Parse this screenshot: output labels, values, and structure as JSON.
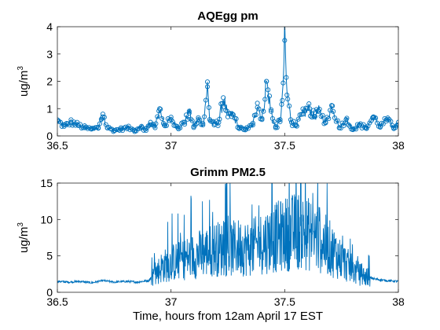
{
  "chart_data": [
    {
      "type": "line",
      "title": "AQEgg pm",
      "ylabel": "ug/m",
      "ylabel_sup": "3",
      "xlabel": "",
      "xlim": [
        36.5,
        38
      ],
      "ylim": [
        0,
        4
      ],
      "xticks": [
        36.5,
        37,
        37.5,
        38
      ],
      "xtick_labels": [
        "36.5",
        "37",
        "37.5",
        "38"
      ],
      "yticks": [
        0,
        1,
        2,
        3,
        4
      ],
      "ytick_labels": [
        "0",
        "1",
        "2",
        "3",
        "4"
      ],
      "grid": false,
      "marker": "circle",
      "color": "#0072BD",
      "series": [
        {
          "x": [
            36.5,
            36.53,
            36.56,
            36.59,
            36.62,
            36.65,
            36.68,
            36.7,
            36.72,
            36.75,
            36.78,
            36.81,
            36.84,
            36.87,
            36.89,
            36.91,
            36.93,
            36.95,
            36.97,
            37.0,
            37.03,
            37.06,
            37.08,
            37.1,
            37.12,
            37.14,
            37.16,
            37.17,
            37.19,
            37.21,
            37.23,
            37.25,
            37.27,
            37.3,
            37.33,
            37.36,
            37.38,
            37.4,
            37.42,
            37.44,
            37.46,
            37.48,
            37.49,
            37.5,
            37.51,
            37.53,
            37.55,
            37.58,
            37.61,
            37.63,
            37.65,
            37.68,
            37.71,
            37.74,
            37.77,
            37.8,
            37.83,
            37.86,
            37.89,
            37.92,
            37.95,
            37.98,
            38.0
          ],
          "y": [
            0.55,
            0.35,
            0.5,
            0.4,
            0.3,
            0.25,
            0.3,
            0.8,
            0.3,
            0.2,
            0.25,
            0.3,
            0.2,
            0.35,
            0.2,
            0.5,
            0.3,
            1.0,
            0.4,
            0.6,
            0.3,
            0.5,
            0.9,
            0.35,
            0.6,
            0.4,
            1.8,
            0.6,
            0.4,
            0.5,
            1.4,
            0.7,
            0.8,
            0.3,
            0.25,
            0.4,
            1.2,
            0.6,
            2.0,
            0.9,
            0.3,
            0.6,
            1.3,
            3.5,
            1.5,
            0.5,
            0.4,
            0.8,
            1.0,
            0.7,
            0.9,
            0.5,
            1.1,
            0.3,
            0.6,
            0.25,
            0.4,
            0.3,
            0.7,
            0.35,
            0.6,
            0.3,
            0.5
          ]
        }
      ]
    },
    {
      "type": "line",
      "title": "Grimm PM2.5",
      "ylabel": "ug/m",
      "ylabel_sup": "3",
      "xlabel": "Time, hours from 12am April 17 EST",
      "xlim": [
        36.5,
        38
      ],
      "ylim": [
        0,
        15
      ],
      "xticks": [
        36.5,
        37,
        37.5,
        38
      ],
      "xtick_labels": [
        "36.5",
        "37",
        "37.5",
        "38"
      ],
      "yticks": [
        0,
        5,
        10,
        15
      ],
      "ytick_labels": [
        "0",
        "5",
        "10",
        "15"
      ],
      "grid": false,
      "marker": "none",
      "color": "#0072BD",
      "series": [
        {
          "x": [
            36.5,
            36.55,
            36.6,
            36.65,
            36.7,
            36.75,
            36.8,
            36.85,
            36.9,
            36.93,
            36.96,
            37.0,
            37.05,
            37.1,
            37.15,
            37.2,
            37.25,
            37.3,
            37.35,
            37.4,
            37.43,
            37.46,
            37.5,
            37.53,
            37.56,
            37.6,
            37.63,
            37.66,
            37.7,
            37.75,
            37.8,
            37.85,
            37.9,
            37.95,
            38.0
          ],
          "y": [
            1.5,
            1.4,
            1.5,
            1.3,
            1.6,
            1.4,
            1.5,
            1.4,
            1.6,
            2.5,
            3.5,
            4.0,
            4.5,
            5.0,
            5.5,
            6.0,
            5.8,
            6.2,
            6.0,
            6.8,
            7.2,
            7.5,
            8.0,
            8.2,
            8.5,
            8.0,
            7.8,
            7.0,
            6.0,
            4.5,
            3.0,
            2.2,
            1.8,
            1.6,
            1.5
          ]
        }
      ]
    }
  ]
}
